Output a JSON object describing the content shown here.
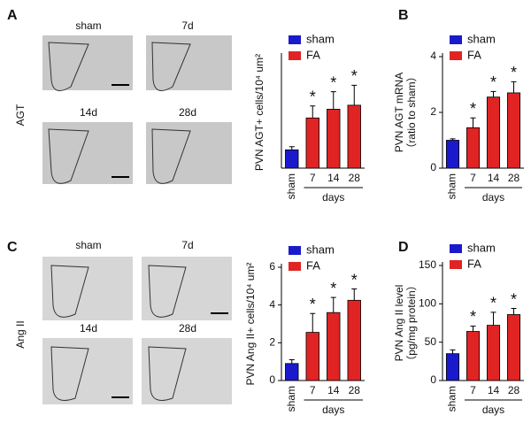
{
  "figure": {
    "panel_labels": [
      "A",
      "B",
      "C",
      "D"
    ],
    "row_labels": [
      "AGT",
      "Ang II"
    ],
    "image_labels": [
      [
        "sham",
        "7d",
        "14d",
        "28d"
      ],
      [
        "sham",
        "7d",
        "14d",
        "28d"
      ]
    ]
  },
  "chart_data": [
    {
      "type": "bar",
      "ylabel": [
        "PVN AGT+ cells/10⁴ um²"
      ],
      "categories": [
        "sham",
        "7",
        "14",
        "28"
      ],
      "xgroup_label": "days",
      "series": [
        {
          "name": "sham",
          "color": "#1a1acc",
          "values": [
            2.3,
            null,
            null,
            null
          ],
          "errors": [
            0.4,
            null,
            null,
            null
          ]
        },
        {
          "name": "FA",
          "color": "#e02424",
          "values": [
            null,
            6.3,
            7.4,
            7.9
          ],
          "errors": [
            null,
            1.5,
            2.2,
            2.5
          ]
        }
      ],
      "significance": [
        null,
        "*",
        "*",
        "*"
      ],
      "ylim": [
        0,
        14
      ]
    },
    {
      "type": "bar",
      "ylabel": [
        "PVN AGT mRNA",
        "（ratio to sham）"
      ],
      "categories": [
        "sham",
        "7",
        "14",
        "28"
      ],
      "xgroup_label": "days",
      "series": [
        {
          "name": "sham",
          "color": "#1a1acc",
          "values": [
            1.0,
            null,
            null,
            null
          ],
          "errors": [
            0.05,
            null,
            null,
            null
          ]
        },
        {
          "name": "FA",
          "color": "#e02424",
          "values": [
            null,
            1.45,
            2.55,
            2.7
          ],
          "errors": [
            null,
            0.35,
            0.2,
            0.4
          ]
        }
      ],
      "significance": [
        null,
        "*",
        "*",
        "*"
      ],
      "ylim": [
        0,
        4
      ],
      "yticks": [
        0,
        2,
        4
      ]
    },
    {
      "type": "bar",
      "ylabel": [
        "PVN Ang II+ cells/10⁴ um²"
      ],
      "categories": [
        "sham",
        "7",
        "14",
        "28"
      ],
      "xgroup_label": "days",
      "series": [
        {
          "name": "sham",
          "color": "#1a1acc",
          "values": [
            0.9,
            null,
            null,
            null
          ],
          "errors": [
            0.2,
            null,
            null,
            null
          ]
        },
        {
          "name": "FA",
          "color": "#e02424",
          "values": [
            null,
            2.55,
            3.6,
            4.25
          ],
          "errors": [
            null,
            1.0,
            0.8,
            0.6
          ]
        }
      ],
      "significance": [
        null,
        "*",
        "*",
        "*"
      ],
      "ylim": [
        0,
        6
      ],
      "yticks": [
        0,
        2,
        4,
        6
      ]
    },
    {
      "type": "bar",
      "ylabel": [
        "PVN Ang II level",
        "（pg/mg protein）"
      ],
      "categories": [
        "sham",
        "7",
        "14",
        "28"
      ],
      "xgroup_label": "days",
      "series": [
        {
          "name": "sham",
          "color": "#1a1acc",
          "values": [
            35,
            null,
            null,
            null
          ],
          "errors": [
            5,
            null,
            null,
            null
          ]
        },
        {
          "name": "FA",
          "color": "#e02424",
          "values": [
            null,
            64,
            72,
            86
          ],
          "errors": [
            null,
            7,
            17,
            8
          ]
        }
      ],
      "significance": [
        null,
        "*",
        "*",
        "*"
      ],
      "ylim": [
        0,
        150
      ],
      "yticks": [
        0,
        50,
        100,
        150
      ]
    }
  ]
}
